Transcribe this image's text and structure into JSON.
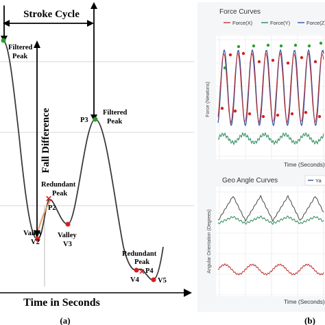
{
  "colors": {
    "curve": "#3a3a3a",
    "peak_marker": "#2e9e2e",
    "point_marker": "#d42020",
    "highlight_ring": "#e9a070",
    "force_x": "#c03030",
    "force_y": "#2a8a5a",
    "force_z": "#3050a0",
    "panel_bg": "#f4f6f8",
    "plot_bg": "#ffffff"
  },
  "panel_a": {
    "stroke_cycle_label": "Stroke Cycle",
    "fall_difference_label": "Fall Difference",
    "x_axis_label": "Time in Seconds",
    "caption": "(a)",
    "filtered_peak_1": [
      "Filtered",
      "Peak"
    ],
    "filtered_peak_2": [
      "Filtered",
      "Peak"
    ],
    "p3": "P3",
    "redundant_peak_1": [
      "Redundant",
      "Peak"
    ],
    "p2": "P2",
    "valley_v2": [
      "Valley",
      "V2"
    ],
    "valley_v3": [
      "Valley",
      "V3"
    ],
    "redundant_peak_2": [
      "Redundant",
      "Peak"
    ],
    "p4": "P4",
    "v4": "V4",
    "v5": "V5"
  },
  "panel_b": {
    "caption": "(b)",
    "force_title": "Force Curves",
    "force_legend": [
      "Force(X)",
      "Force(Y)",
      "Force(Z)"
    ],
    "force_ylabel": "Force (Newtons)",
    "force_xlabel": "Time (Seconds)",
    "angle_title": "Geo Angle Curves",
    "angle_legend": [
      "Ya"
    ],
    "angle_ylabel": "Angular Orientation (Degrees)",
    "angle_xlabel": "Time (Seconds)"
  }
}
